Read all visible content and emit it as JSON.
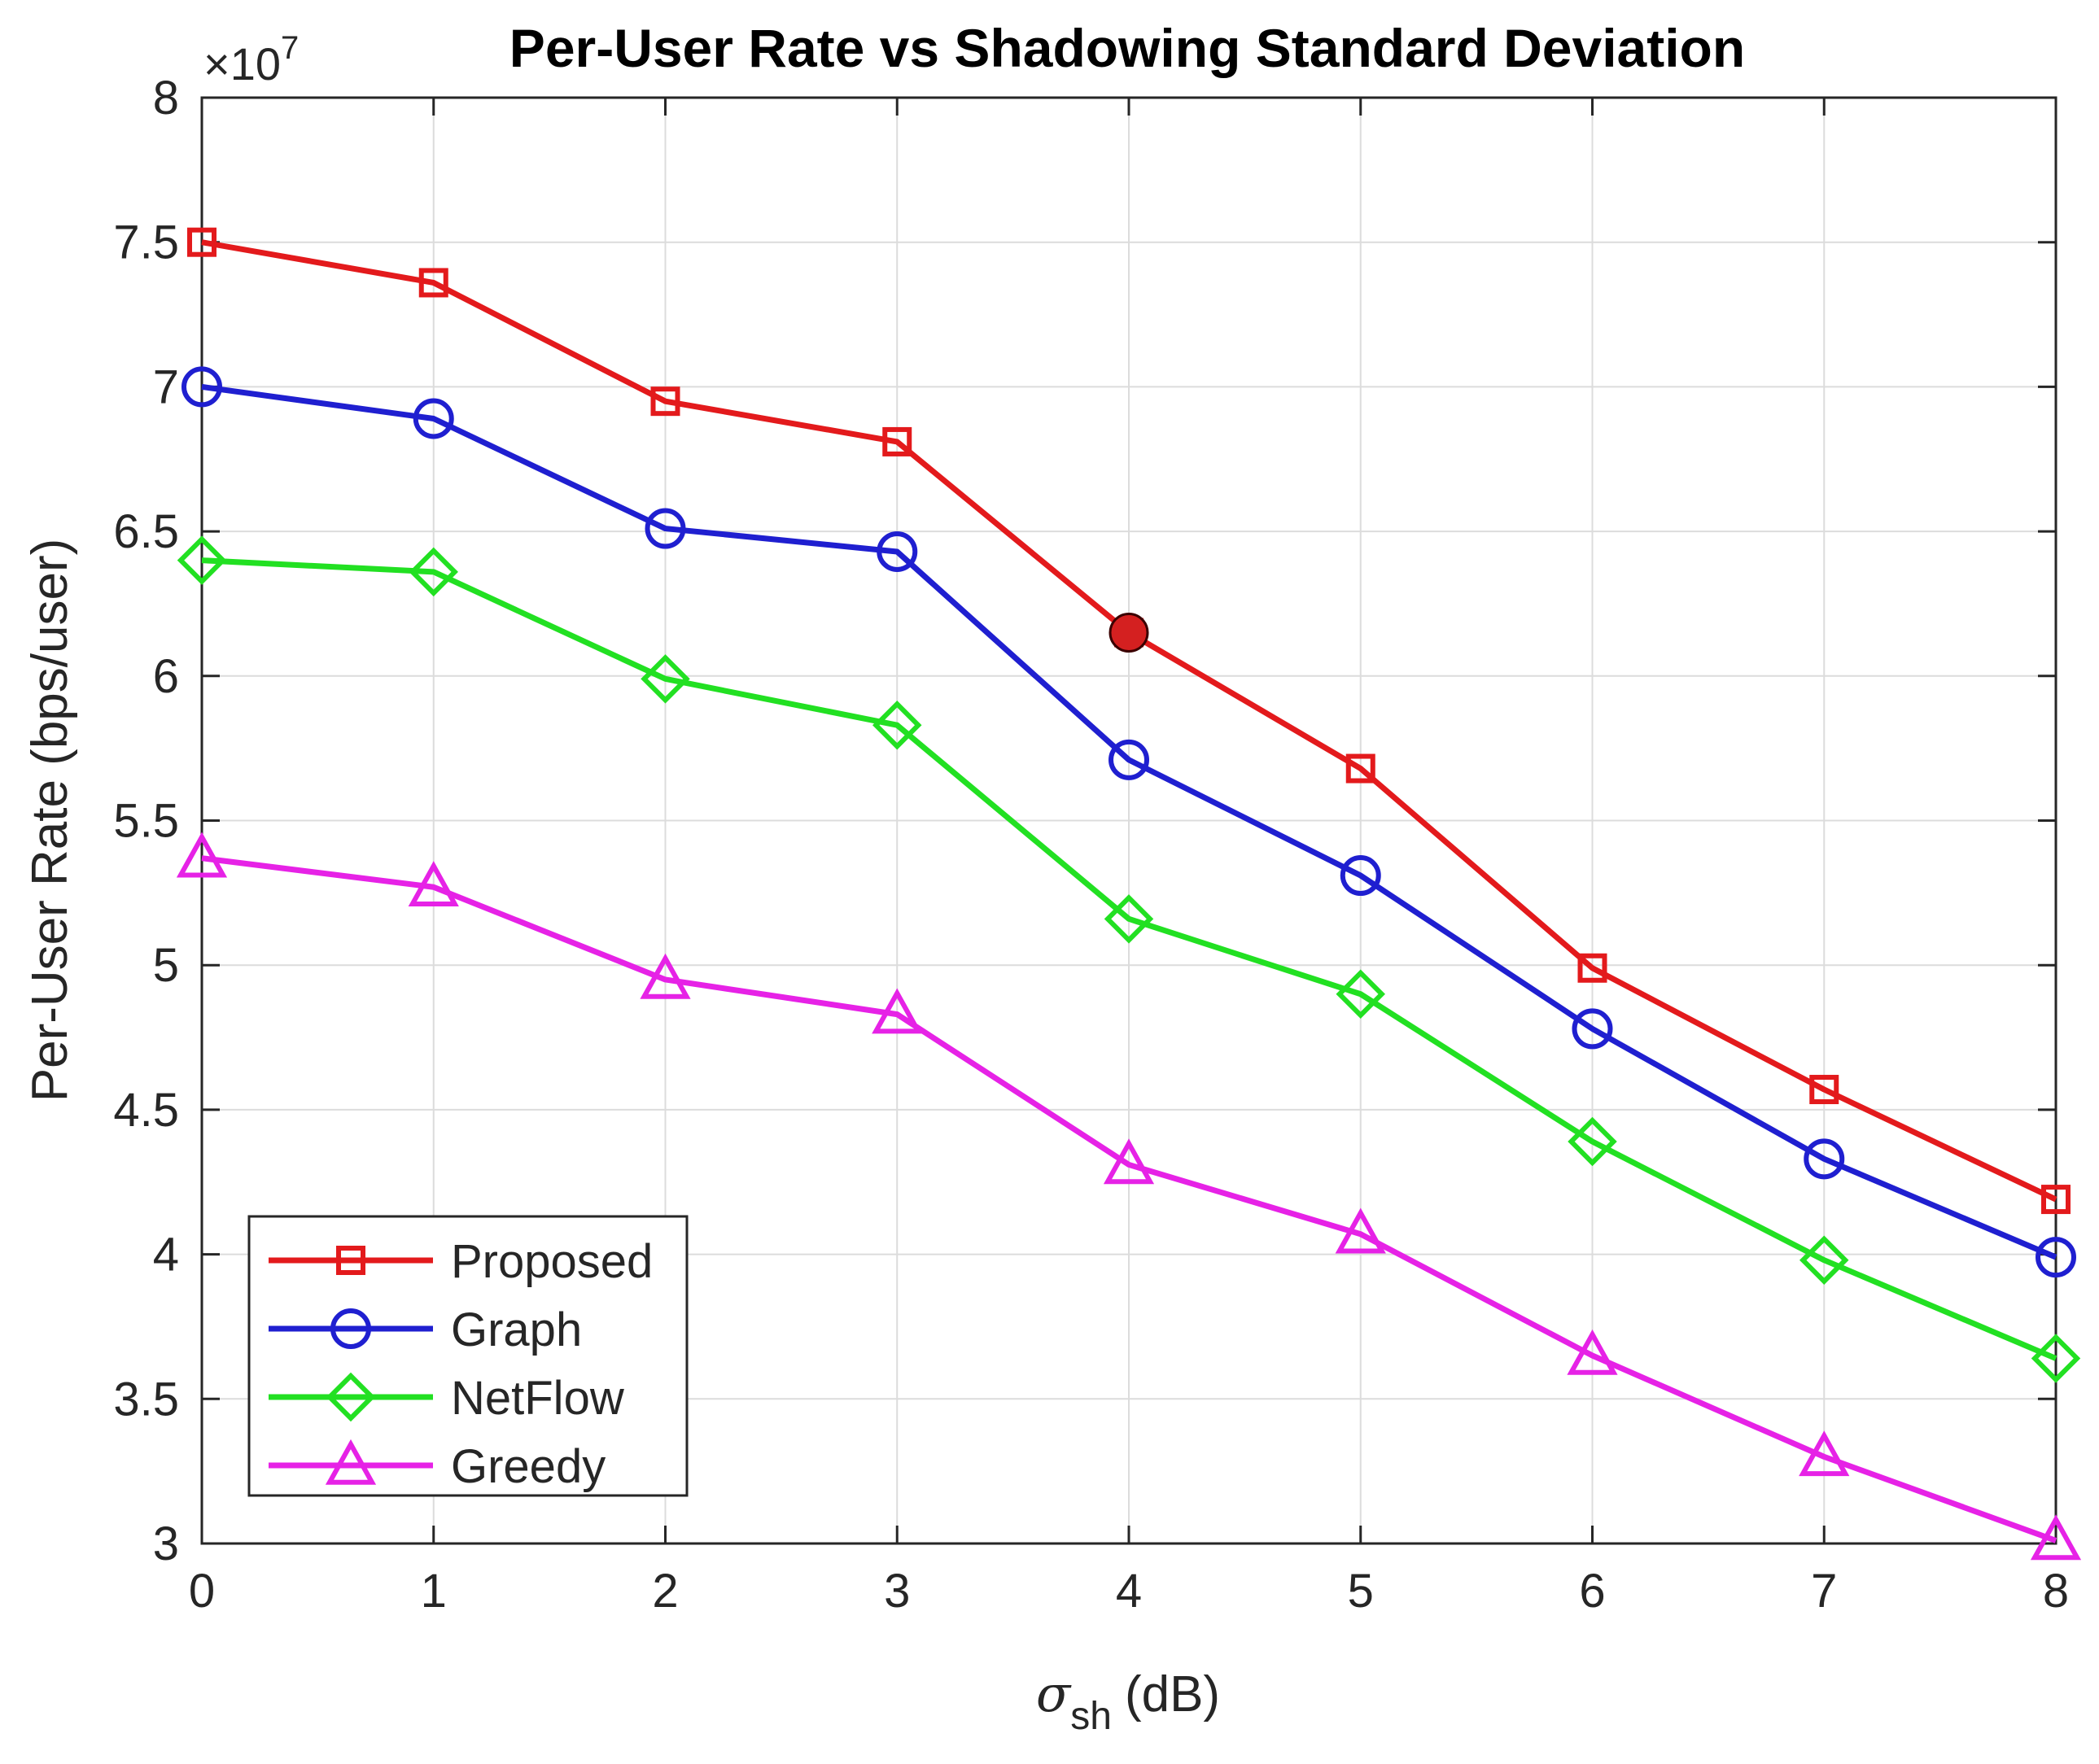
{
  "chart_data": {
    "type": "line",
    "title": "Per-User Rate vs Shadowing Standard Deviation",
    "xlabel_symbol": "σ",
    "xlabel_subscript": "sh",
    "xlabel_unit": "(dB)",
    "ylabel": "Per-User Rate (bps/user)",
    "y_exponent_base": "×10",
    "y_exponent_power": "7",
    "x": [
      0,
      1,
      2,
      3,
      4,
      5,
      6,
      7,
      8
    ],
    "xlim": [
      0,
      8
    ],
    "ylim": [
      3,
      8
    ],
    "xticks": [
      "0",
      "1",
      "2",
      "3",
      "4",
      "5",
      "6",
      "7",
      "8"
    ],
    "yticks": [
      "3",
      "3.5",
      "4",
      "4.5",
      "5",
      "5.5",
      "6",
      "6.5",
      "7",
      "7.5",
      "8"
    ],
    "ytick_values": [
      3,
      3.5,
      4,
      4.5,
      5,
      5.5,
      6,
      6.5,
      7,
      7.5,
      8
    ],
    "grid": true,
    "legend_position": "bottom-left",
    "series": [
      {
        "name": "Proposed",
        "color": "#e31a1c",
        "marker": "square",
        "values": [
          7.5,
          7.36,
          6.95,
          6.81,
          6.15,
          5.68,
          4.99,
          4.57,
          4.19
        ]
      },
      {
        "name": "Graph",
        "color": "#1f1fd0",
        "marker": "circle",
        "values": [
          7.0,
          6.89,
          6.51,
          6.43,
          5.71,
          5.31,
          4.78,
          4.33,
          3.99
        ]
      },
      {
        "name": "NetFlow",
        "color": "#22e022",
        "marker": "diamond",
        "values": [
          6.4,
          6.36,
          5.99,
          5.83,
          5.16,
          4.9,
          4.39,
          3.98,
          3.64
        ]
      },
      {
        "name": "Greedy",
        "color": "#e622e6",
        "marker": "triangle",
        "values": [
          5.37,
          5.27,
          4.95,
          4.83,
          4.31,
          4.07,
          3.65,
          3.3,
          3.01
        ]
      }
    ],
    "highlight": {
      "series": "Proposed",
      "x": 4,
      "y": 6.15,
      "color": "#d42020"
    }
  }
}
